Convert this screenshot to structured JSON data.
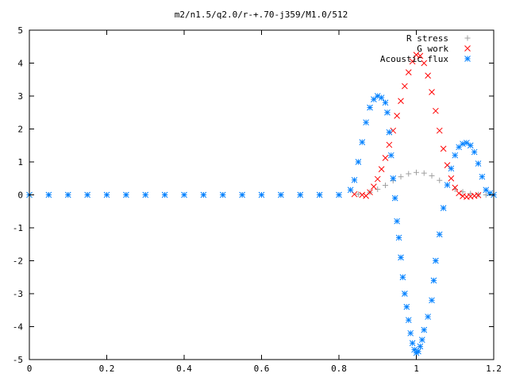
{
  "chart_data": {
    "type": "scatter",
    "title": "m2/n1.5/q2.0/r-+.70-j359/M1.0/512",
    "xlabel": "",
    "ylabel": "",
    "xlim": [
      0,
      1.2
    ],
    "ylim": [
      -5,
      5
    ],
    "grid": false,
    "legend_position": "top-right",
    "x_ticks": [
      0,
      0.2,
      0.4,
      0.6,
      0.8,
      1,
      1.2
    ],
    "x_tick_labels": [
      "0",
      "0.2",
      "0.4",
      "0.6",
      "0.8",
      "1",
      "1.2"
    ],
    "y_ticks": [
      -5,
      -4,
      -3,
      -2,
      -1,
      0,
      1,
      2,
      3,
      4,
      5
    ],
    "y_tick_labels": [
      "-5",
      "-4",
      "-3",
      "-2",
      "-1",
      "0",
      "1",
      "2",
      "3",
      "4",
      "5"
    ],
    "series": [
      {
        "name": "R stress",
        "marker": "plus",
        "color": "#a0a0a0",
        "points": [
          [
            0.0,
            0
          ],
          [
            0.05,
            0
          ],
          [
            0.1,
            0
          ],
          [
            0.15,
            0
          ],
          [
            0.2,
            0
          ],
          [
            0.25,
            0
          ],
          [
            0.3,
            0
          ],
          [
            0.35,
            0
          ],
          [
            0.4,
            0
          ],
          [
            0.45,
            0
          ],
          [
            0.5,
            0
          ],
          [
            0.55,
            0
          ],
          [
            0.6,
            0
          ],
          [
            0.65,
            0
          ],
          [
            0.7,
            0
          ],
          [
            0.75,
            0
          ],
          [
            0.8,
            0
          ],
          [
            0.85,
            0.02
          ],
          [
            0.88,
            0.08
          ],
          [
            0.9,
            0.17
          ],
          [
            0.92,
            0.29
          ],
          [
            0.94,
            0.43
          ],
          [
            0.96,
            0.55
          ],
          [
            0.98,
            0.64
          ],
          [
            1.0,
            0.68
          ],
          [
            1.02,
            0.66
          ],
          [
            1.04,
            0.58
          ],
          [
            1.06,
            0.44
          ],
          [
            1.08,
            0.3
          ],
          [
            1.1,
            0.17
          ],
          [
            1.12,
            0.09
          ],
          [
            1.14,
            0.04
          ],
          [
            1.16,
            0.01
          ],
          [
            1.18,
            0
          ],
          [
            1.2,
            0
          ]
        ]
      },
      {
        "name": "G work",
        "marker": "x",
        "color": "#ff0000",
        "points": [
          [
            0.84,
            0.02
          ],
          [
            0.86,
            0
          ],
          [
            0.87,
            -0.03
          ],
          [
            0.88,
            0.08
          ],
          [
            0.89,
            0.25
          ],
          [
            0.9,
            0.48
          ],
          [
            0.91,
            0.78
          ],
          [
            0.92,
            1.12
          ],
          [
            0.93,
            1.52
          ],
          [
            0.94,
            1.95
          ],
          [
            0.95,
            2.4
          ],
          [
            0.96,
            2.85
          ],
          [
            0.97,
            3.3
          ],
          [
            0.98,
            3.72
          ],
          [
            0.99,
            4.05
          ],
          [
            1.0,
            4.25
          ],
          [
            1.01,
            4.22
          ],
          [
            1.02,
            4.0
          ],
          [
            1.03,
            3.62
          ],
          [
            1.04,
            3.12
          ],
          [
            1.05,
            2.55
          ],
          [
            1.06,
            1.95
          ],
          [
            1.07,
            1.4
          ],
          [
            1.08,
            0.9
          ],
          [
            1.09,
            0.5
          ],
          [
            1.1,
            0.22
          ],
          [
            1.11,
            0.05
          ],
          [
            1.12,
            -0.04
          ],
          [
            1.13,
            -0.06
          ],
          [
            1.14,
            -0.05
          ],
          [
            1.15,
            -0.03
          ],
          [
            1.16,
            -0.01
          ]
        ]
      },
      {
        "name": "Acoustic flux",
        "marker": "star",
        "color": "#0080ff",
        "points": [
          [
            0.0,
            0
          ],
          [
            0.05,
            0
          ],
          [
            0.1,
            0
          ],
          [
            0.15,
            0
          ],
          [
            0.2,
            0
          ],
          [
            0.25,
            0
          ],
          [
            0.3,
            0
          ],
          [
            0.35,
            0
          ],
          [
            0.4,
            0
          ],
          [
            0.45,
            0
          ],
          [
            0.5,
            0
          ],
          [
            0.55,
            0
          ],
          [
            0.6,
            0
          ],
          [
            0.65,
            0
          ],
          [
            0.7,
            0
          ],
          [
            0.75,
            0
          ],
          [
            0.8,
            0
          ],
          [
            0.83,
            0.15
          ],
          [
            0.84,
            0.45
          ],
          [
            0.85,
            1.0
          ],
          [
            0.86,
            1.6
          ],
          [
            0.87,
            2.2
          ],
          [
            0.88,
            2.65
          ],
          [
            0.89,
            2.9
          ],
          [
            0.9,
            3.0
          ],
          [
            0.91,
            2.95
          ],
          [
            0.92,
            2.8
          ],
          [
            0.925,
            2.5
          ],
          [
            0.93,
            1.9
          ],
          [
            0.935,
            1.2
          ],
          [
            0.94,
            0.5
          ],
          [
            0.945,
            -0.1
          ],
          [
            0.95,
            -0.8
          ],
          [
            0.955,
            -1.3
          ],
          [
            0.96,
            -1.9
          ],
          [
            0.965,
            -2.5
          ],
          [
            0.97,
            -3.0
          ],
          [
            0.975,
            -3.4
          ],
          [
            0.98,
            -3.8
          ],
          [
            0.985,
            -4.2
          ],
          [
            0.99,
            -4.5
          ],
          [
            0.995,
            -4.7
          ],
          [
            1.0,
            -4.8
          ],
          [
            1.005,
            -4.75
          ],
          [
            1.01,
            -4.6
          ],
          [
            1.015,
            -4.4
          ],
          [
            1.02,
            -4.1
          ],
          [
            1.03,
            -3.7
          ],
          [
            1.04,
            -3.2
          ],
          [
            1.045,
            -2.6
          ],
          [
            1.05,
            -2.0
          ],
          [
            1.06,
            -1.2
          ],
          [
            1.07,
            -0.4
          ],
          [
            1.08,
            0.3
          ],
          [
            1.09,
            0.8
          ],
          [
            1.1,
            1.2
          ],
          [
            1.11,
            1.45
          ],
          [
            1.12,
            1.55
          ],
          [
            1.13,
            1.58
          ],
          [
            1.14,
            1.5
          ],
          [
            1.15,
            1.3
          ],
          [
            1.16,
            0.95
          ],
          [
            1.17,
            0.55
          ],
          [
            1.18,
            0.15
          ],
          [
            1.19,
            0.05
          ],
          [
            1.2,
            0
          ]
        ]
      }
    ]
  }
}
